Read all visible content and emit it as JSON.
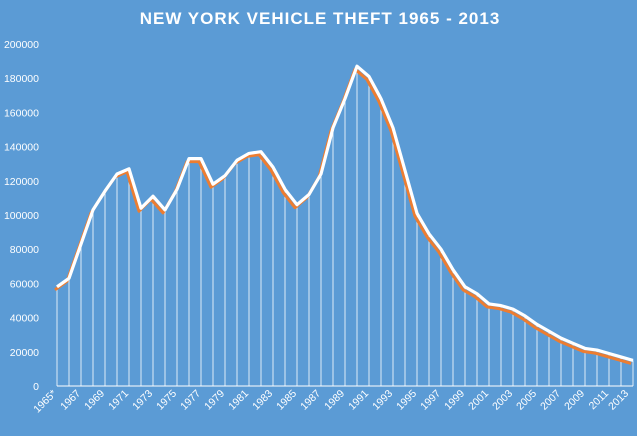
{
  "chart_data": {
    "type": "line",
    "title": "NEW YORK VEHICLE THEFT 1965 - 2013",
    "xlabel": "",
    "ylabel": "",
    "ylim": [
      0,
      200000
    ],
    "yticks": [
      "0",
      "20000",
      "40000",
      "60000",
      "80000",
      "100000",
      "120000",
      "140000",
      "160000",
      "180000",
      "200000"
    ],
    "xticks": [
      "1965*",
      "1967",
      "1969",
      "1971",
      "1973",
      "1975",
      "1977",
      "1979",
      "1981",
      "1983",
      "1985",
      "1987",
      "1989",
      "1991",
      "1993",
      "1995",
      "1997",
      "1999",
      "2001",
      "2003",
      "2005",
      "2007",
      "2009",
      "2011",
      "2013"
    ],
    "grid": false,
    "legend": "none",
    "x": [
      1965,
      1966,
      1967,
      1968,
      1969,
      1970,
      1971,
      1972,
      1973,
      1974,
      1975,
      1976,
      1977,
      1978,
      1979,
      1980,
      1981,
      1982,
      1983,
      1984,
      1985,
      1986,
      1987,
      1988,
      1989,
      1990,
      1991,
      1992,
      1993,
      1994,
      1995,
      1996,
      1997,
      1998,
      1999,
      2000,
      2001,
      2002,
      2003,
      2004,
      2005,
      2006,
      2007,
      2008,
      2009,
      2010,
      2011,
      2012,
      2013
    ],
    "series": [
      {
        "values": [
          58000,
          63000,
          83000,
          103000,
          114000,
          124000,
          127000,
          104000,
          111000,
          103000,
          115000,
          133000,
          133000,
          118000,
          123000,
          132000,
          136000,
          137000,
          128000,
          115000,
          106000,
          112000,
          124000,
          151000,
          168000,
          187000,
          181000,
          168000,
          151000,
          126000,
          101000,
          89000,
          80000,
          68000,
          58000,
          54000,
          48000,
          47000,
          45000,
          41000,
          36000,
          32000,
          28000,
          25000,
          22000,
          21000,
          19000,
          17000,
          15000
        ],
        "color": "#ffffff",
        "shadow_color": "#ed7d31"
      }
    ]
  }
}
